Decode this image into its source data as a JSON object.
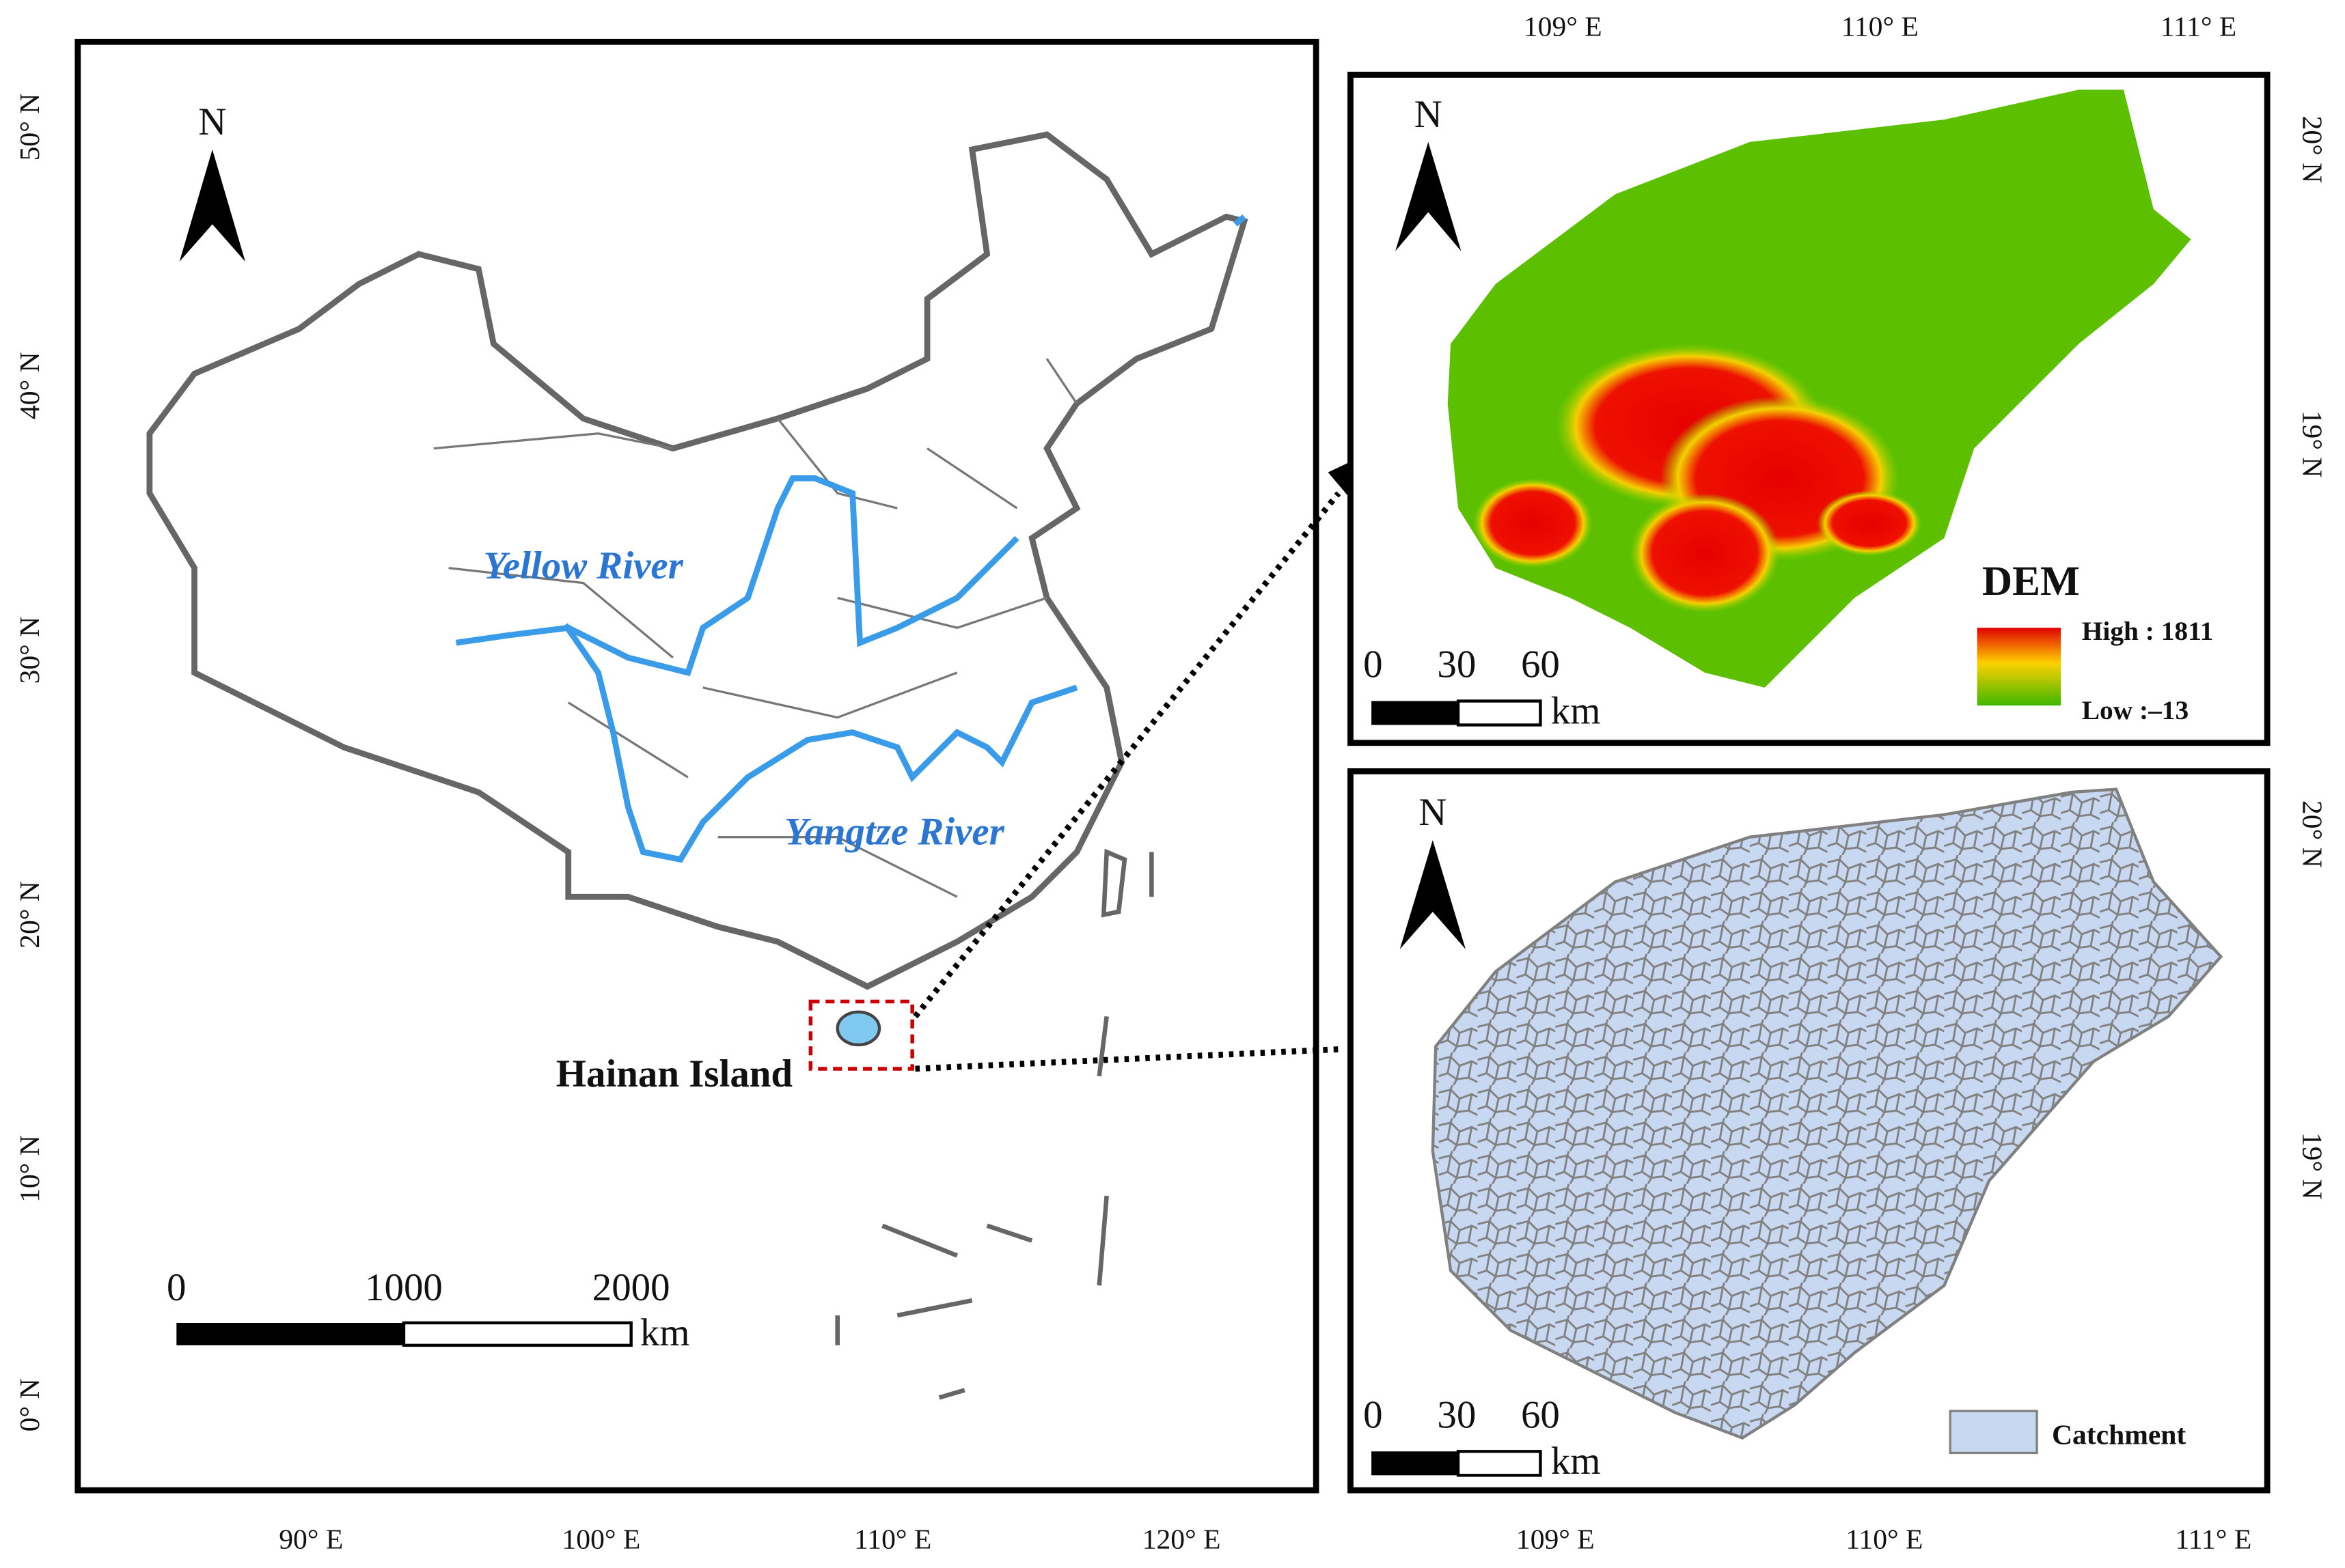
{
  "main_map": {
    "lat_labels": [
      "50° N",
      "40° N",
      "30° N",
      "20° N",
      "10° N",
      "0° N"
    ],
    "lon_labels": [
      "90° E",
      "100° E",
      "110° E",
      "120° E"
    ],
    "north": "N",
    "rivers": [
      "Yellow River",
      "Yangtze River"
    ],
    "callout": "Hainan Island",
    "scale": {
      "ticks": [
        "0",
        "1000",
        "2000"
      ],
      "unit": "km"
    }
  },
  "dem_map": {
    "lon_labels": [
      "109° E",
      "110° E",
      "111° E"
    ],
    "lat_labels": [
      "20° N",
      "19° N"
    ],
    "north": "N",
    "legend": {
      "title": "DEM",
      "high": "High : 1811",
      "low": "Low :–13"
    },
    "scale": {
      "ticks": [
        "0",
        "30",
        "60"
      ],
      "unit": "km"
    }
  },
  "catchment_map": {
    "lon_labels": [
      "109° E",
      "110° E",
      "111° E"
    ],
    "lat_labels": [
      "20° N",
      "19° N"
    ],
    "north": "N",
    "legend": "Catchment",
    "scale": {
      "ticks": [
        "0",
        "30",
        "60"
      ],
      "unit": "km"
    }
  }
}
